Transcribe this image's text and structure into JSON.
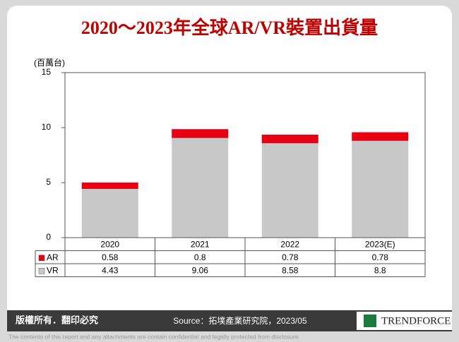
{
  "chart_data": {
    "type": "stacked_bar",
    "title": "2020～2023年全球AR/VR裝置出貨量",
    "y_label": "(百萬台)",
    "categories": [
      "2020",
      "2021",
      "2022",
      "2023(E)"
    ],
    "series": [
      {
        "name": "AR",
        "color": "#e60012",
        "values": [
          0.58,
          0.8,
          0.78,
          0.78
        ]
      },
      {
        "name": "VR",
        "color": "#c8c8c8",
        "values": [
          4.43,
          9.06,
          8.58,
          8.8
        ]
      }
    ],
    "ylim": [
      0,
      15
    ],
    "yticks": [
      0,
      5,
      10,
      15
    ],
    "grid": false
  },
  "footer": {
    "copyright": "版權所有．翻印必究",
    "source": "Source：拓墣產業研究院，2023/05",
    "brand": "TRENDFORCE",
    "disclaimer": "The contents of this report and any attachments are contain confidential and legally protected from disclosure."
  }
}
